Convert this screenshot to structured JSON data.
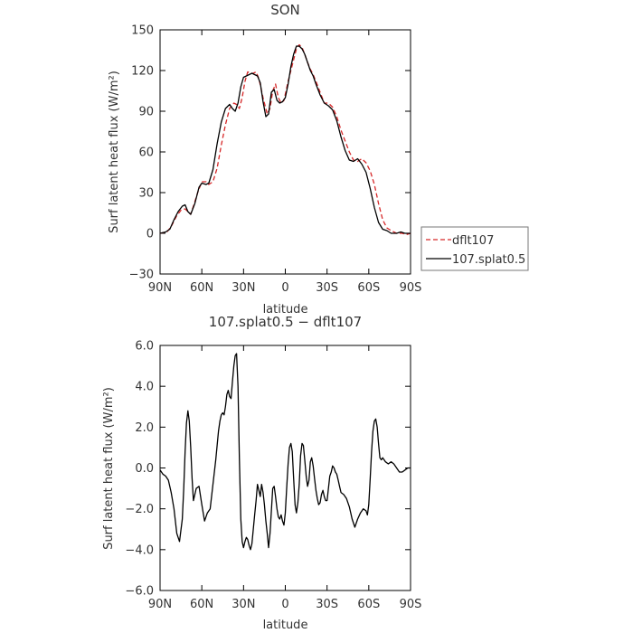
{
  "chart_data": [
    {
      "type": "line",
      "title": "SON",
      "xlabel": "latitude",
      "ylabel": "Surf latent heat flux (W/m²)",
      "xlim": [
        90,
        -90
      ],
      "ylim": [
        -30,
        150
      ],
      "xticks": [
        90,
        60,
        30,
        0,
        -30,
        -60,
        -90
      ],
      "xticklabels": [
        "90N",
        "60N",
        "30N",
        "0",
        "30S",
        "60S",
        "90S"
      ],
      "yticks": [
        -30,
        0,
        30,
        60,
        90,
        120,
        150
      ],
      "yticklabels": [
        "−30",
        "0",
        "30",
        "60",
        "90",
        "120",
        "150"
      ],
      "legend_position": "right",
      "series": [
        {
          "name": "dflt107",
          "color": "#d62728",
          "dash": "dashed",
          "x": [
            90,
            85,
            82,
            78,
            75,
            72,
            70,
            68,
            66,
            63,
            60,
            57,
            55,
            52,
            49,
            46,
            43,
            40,
            37,
            35,
            33,
            31,
            29,
            27,
            25,
            23,
            21,
            19,
            16,
            13,
            11,
            9,
            7,
            5,
            3,
            1,
            -2,
            -5,
            -8,
            -10,
            -12,
            -14,
            -16,
            -18,
            -20,
            -22,
            -25,
            -28,
            -31,
            -34,
            -37,
            -40,
            -43,
            -46,
            -49,
            -52,
            -55,
            -58,
            -61,
            -64,
            -67,
            -70,
            -73,
            -76,
            -80,
            -84,
            -87,
            -90
          ],
          "y": [
            0,
            1,
            5,
            13,
            17,
            18,
            16,
            14,
            20,
            30,
            38,
            38,
            36,
            38,
            48,
            65,
            80,
            92,
            96,
            95,
            92,
            100,
            112,
            119,
            118,
            118,
            119,
            114,
            100,
            88,
            92,
            105,
            110,
            100,
            96,
            98,
            112,
            124,
            136,
            139,
            137,
            132,
            126,
            121,
            117,
            112,
            104,
            96,
            96,
            93,
            86,
            76,
            68,
            60,
            54,
            53,
            55,
            52,
            46,
            36,
            22,
            10,
            4,
            2,
            0,
            0,
            -1,
            0
          ]
        },
        {
          "name": "107.splat0.5",
          "color": "#000000",
          "dash": "solid",
          "x": [
            90,
            86,
            83,
            80,
            77,
            74,
            72,
            70,
            68,
            65,
            62,
            60,
            57,
            55,
            52,
            49,
            46,
            43,
            40,
            38,
            36,
            34,
            32,
            30,
            28,
            26,
            24,
            22,
            20,
            18,
            16,
            14,
            12,
            10,
            8,
            6,
            4,
            2,
            0,
            -2,
            -4,
            -6,
            -8,
            -10,
            -12,
            -14,
            -16,
            -18,
            -20,
            -22,
            -25,
            -28,
            -31,
            -34,
            -37,
            -40,
            -43,
            -46,
            -49,
            -52,
            -55,
            -58,
            -61,
            -64,
            -67,
            -70,
            -73,
            -76,
            -80,
            -83,
            -86,
            -90
          ],
          "y": [
            0,
            1,
            3,
            10,
            16,
            20,
            21,
            16,
            14,
            22,
            34,
            37,
            36,
            37,
            47,
            66,
            82,
            92,
            95,
            92,
            90,
            96,
            108,
            115,
            116,
            117,
            118,
            117,
            116,
            111,
            97,
            86,
            88,
            104,
            106,
            98,
            96,
            97,
            100,
            110,
            123,
            132,
            138,
            138,
            136,
            132,
            126,
            120,
            116,
            110,
            102,
            96,
            94,
            91,
            83,
            71,
            61,
            54,
            53,
            55,
            51,
            45,
            33,
            19,
            8,
            3,
            2,
            0,
            0,
            1,
            0,
            0
          ]
        }
      ]
    },
    {
      "type": "line",
      "title": "107.splat0.5 − dflt107",
      "xlabel": "latitude",
      "ylabel": "Surf latent heat flux (W/m²)",
      "xlim": [
        90,
        -90
      ],
      "ylim": [
        -6,
        6
      ],
      "xticks": [
        90,
        60,
        30,
        0,
        -30,
        -60,
        -90
      ],
      "xticklabels": [
        "90N",
        "60N",
        "30N",
        "0",
        "30S",
        "60S",
        "90S"
      ],
      "yticks": [
        -6,
        -4,
        -2,
        0,
        2,
        4,
        6
      ],
      "yticklabels": [
        "−6.0",
        "−4.0",
        "−2.0",
        "0.0",
        "2.0",
        "4.0",
        "6.0"
      ],
      "series": [
        {
          "color": "#000000",
          "dash": "solid",
          "x": [
            90,
            88,
            86,
            84,
            82,
            80,
            78,
            76,
            74,
            73,
            72,
            71,
            70,
            69,
            68,
            67,
            66,
            64,
            62,
            60,
            58,
            56,
            54,
            52,
            50,
            49,
            48,
            47,
            46,
            45,
            44,
            43,
            42,
            41,
            40,
            39,
            38,
            37,
            36,
            35,
            34,
            33,
            32,
            31,
            30,
            29,
            28,
            27,
            26,
            25,
            24,
            23,
            22,
            21,
            20,
            19,
            18,
            17,
            16,
            15,
            14,
            13,
            12,
            11,
            10,
            9,
            8,
            7,
            6,
            5,
            4,
            3,
            2,
            1,
            0,
            -1,
            -2,
            -3,
            -4,
            -5,
            -6,
            -7,
            -8,
            -9,
            -10,
            -11,
            -12,
            -13,
            -14,
            -15,
            -16,
            -17,
            -18,
            -19,
            -20,
            -21,
            -22,
            -23,
            -24,
            -25,
            -26,
            -27,
            -28,
            -29,
            -30,
            -31,
            -32,
            -33,
            -34,
            -35,
            -36,
            -37,
            -38,
            -39,
            -40,
            -42,
            -44,
            -46,
            -48,
            -50,
            -52,
            -54,
            -56,
            -58,
            -59,
            -60,
            -61,
            -62,
            -63,
            -64,
            -65,
            -66,
            -67,
            -68,
            -69,
            -70,
            -72,
            -74,
            -76,
            -78,
            -80,
            -82,
            -84,
            -86,
            -88,
            -90
          ],
          "y": [
            -0.1,
            -0.3,
            -0.4,
            -0.6,
            -1.2,
            -2.0,
            -3.2,
            -3.6,
            -2.5,
            -1.0,
            0.8,
            2.2,
            2.8,
            2.3,
            1.0,
            -0.5,
            -1.6,
            -1.0,
            -0.9,
            -1.8,
            -2.6,
            -2.2,
            -2.0,
            -0.8,
            0.4,
            1.1,
            1.8,
            2.3,
            2.6,
            2.7,
            2.6,
            3.0,
            3.6,
            3.8,
            3.5,
            3.4,
            4.2,
            5.0,
            5.5,
            5.6,
            4.0,
            0.5,
            -2.5,
            -3.6,
            -3.9,
            -3.6,
            -3.4,
            -3.5,
            -3.8,
            -4.0,
            -3.7,
            -3.0,
            -2.3,
            -1.6,
            -0.8,
            -1.1,
            -1.4,
            -0.8,
            -1.2,
            -1.8,
            -2.6,
            -3.2,
            -3.9,
            -3.2,
            -2.1,
            -1.0,
            -0.9,
            -1.4,
            -2.0,
            -2.4,
            -2.5,
            -2.3,
            -2.6,
            -2.8,
            -2.2,
            -1.0,
            0.2,
            1.0,
            1.2,
            0.8,
            -0.5,
            -1.8,
            -2.2,
            -1.7,
            -0.8,
            0.6,
            1.2,
            1.1,
            0.4,
            -0.4,
            -0.9,
            -0.6,
            0.3,
            0.5,
            0.1,
            -0.5,
            -1.1,
            -1.5,
            -1.8,
            -1.7,
            -1.3,
            -1.1,
            -1.4,
            -1.6,
            -1.6,
            -1.0,
            -0.4,
            -0.2,
            0.1,
            0.0,
            -0.2,
            -0.3,
            -0.6,
            -0.9,
            -1.2,
            -1.3,
            -1.5,
            -1.9,
            -2.5,
            -2.9,
            -2.5,
            -2.2,
            -2.0,
            -2.1,
            -2.3,
            -1.8,
            -0.5,
            0.8,
            1.8,
            2.3,
            2.4,
            2.0,
            1.2,
            0.5,
            0.4,
            0.5,
            0.3,
            0.2,
            0.3,
            0.2,
            0.0,
            -0.2,
            -0.2,
            -0.1,
            0.0,
            0.0
          ]
        }
      ]
    }
  ]
}
